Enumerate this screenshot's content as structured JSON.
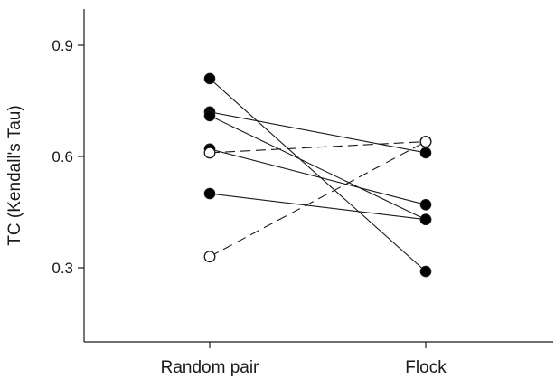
{
  "chart_data": {
    "type": "scatter",
    "title": "",
    "xlabel": "",
    "ylabel": "TC (Kendall's Tau)",
    "categories": [
      "Random pair",
      "Flock"
    ],
    "ylim": [
      0.1,
      1.05
    ],
    "yticks": [
      0.3,
      0.6,
      0.9
    ],
    "ytick_labels": [
      "0.3",
      "0.6",
      "0.9"
    ],
    "grid": false,
    "legend": "none",
    "series": [
      {
        "style": "solid",
        "marker": "filled",
        "values": [
          0.81,
          0.29
        ]
      },
      {
        "style": "solid",
        "marker": "filled",
        "values": [
          0.72,
          0.61
        ]
      },
      {
        "style": "solid",
        "marker": "filled",
        "values": [
          0.71,
          0.43
        ]
      },
      {
        "style": "solid",
        "marker": "filled",
        "values": [
          0.62,
          0.47
        ]
      },
      {
        "style": "solid",
        "marker": "filled",
        "values": [
          0.5,
          0.43
        ]
      },
      {
        "style": "dashed",
        "marker": "open",
        "values": [
          0.61,
          0.64
        ]
      },
      {
        "style": "dashed",
        "marker": "open",
        "values": [
          0.33,
          0.64
        ]
      }
    ],
    "colors": {
      "line": "#1a1a1a",
      "marker_fill": "#000000",
      "marker_open_fill": "#ffffff"
    }
  }
}
